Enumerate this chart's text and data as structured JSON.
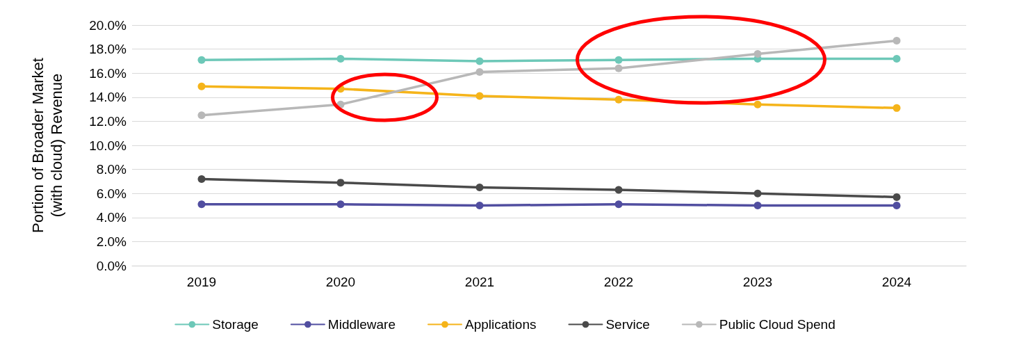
{
  "chart_data": {
    "type": "line",
    "ylabel": "Portion of Broader Market (with cloud) Revenue",
    "categories": [
      "2019",
      "2020",
      "2021",
      "2022",
      "2023",
      "2024"
    ],
    "series": [
      {
        "name": "Storage",
        "color": "#6dc8b8",
        "values": [
          17.1,
          17.2,
          17.0,
          17.1,
          17.2,
          17.2
        ]
      },
      {
        "name": "Middleware",
        "color": "#514ea0",
        "values": [
          5.1,
          5.1,
          5.0,
          5.1,
          5.0,
          5.0
        ]
      },
      {
        "name": "Applications",
        "color": "#f5b41a",
        "values": [
          14.9,
          14.7,
          14.1,
          13.8,
          13.4,
          13.1
        ]
      },
      {
        "name": "Service",
        "color": "#4a4a4a",
        "values": [
          7.2,
          6.9,
          6.5,
          6.3,
          6.0,
          5.7
        ]
      },
      {
        "name": "Public Cloud Spend",
        "color": "#b8b8b8",
        "values": [
          12.5,
          13.4,
          16.1,
          16.4,
          17.6,
          18.7
        ]
      }
    ],
    "ylim": [
      0,
      20
    ],
    "yticks": [
      {
        "value": 0,
        "label": "0.0%"
      },
      {
        "value": 2,
        "label": "2.0%"
      },
      {
        "value": 4,
        "label": "4.0%"
      },
      {
        "value": 6,
        "label": "6.0%"
      },
      {
        "value": 8,
        "label": "8.0%"
      },
      {
        "value": 10,
        "label": "10.0%"
      },
      {
        "value": 12,
        "label": "12.0%"
      },
      {
        "value": 14,
        "label": "14.0%"
      },
      {
        "value": 16,
        "label": "16.0%"
      },
      {
        "value": 18,
        "label": "18.0%"
      },
      {
        "value": 20,
        "label": "20.0%"
      }
    ],
    "grid": "y",
    "legend": "bottom",
    "marker": "circle",
    "line_style": "solid"
  }
}
